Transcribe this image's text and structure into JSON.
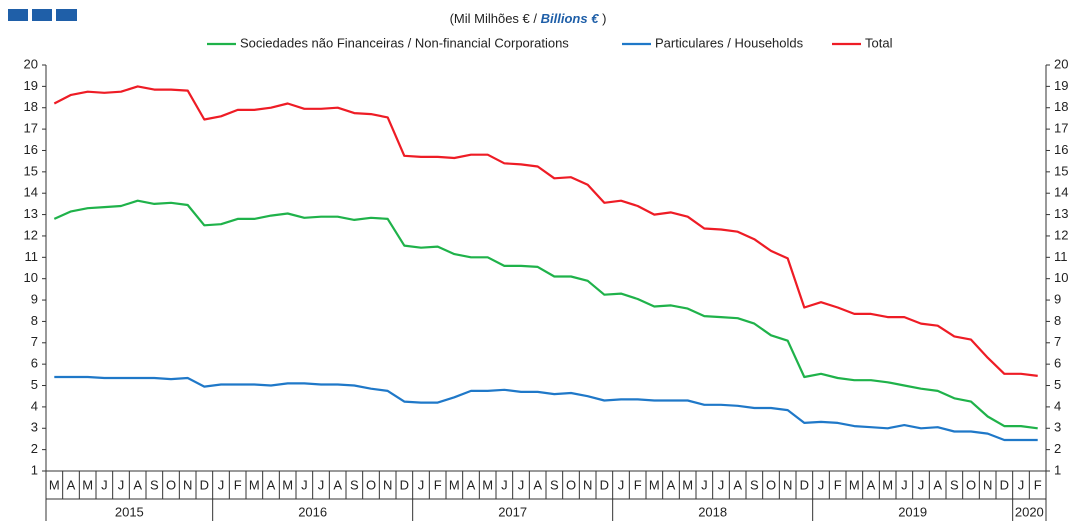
{
  "chart_data": {
    "type": "line",
    "title": "(Mil Milhões € /",
    "title_en": "Billions  €",
    "title_close": ")",
    "groups": [
      {
        "name": "2015",
        "categories": [
          "M",
          "A",
          "M",
          "J",
          "J",
          "A",
          "S",
          "O",
          "N",
          "D"
        ]
      },
      {
        "name": "2016",
        "categories": [
          "J",
          "F",
          "M",
          "A",
          "M",
          "J",
          "J",
          "A",
          "S",
          "O",
          "N",
          "D"
        ]
      },
      {
        "name": "2017",
        "categories": [
          "J",
          "F",
          "M",
          "A",
          "M",
          "J",
          "J",
          "A",
          "S",
          "O",
          "N",
          "D"
        ]
      },
      {
        "name": "2018",
        "categories": [
          "J",
          "F",
          "M",
          "A",
          "M",
          "J",
          "J",
          "A",
          "S",
          "O",
          "N",
          "D"
        ]
      },
      {
        "name": "2019",
        "categories": [
          "J",
          "F",
          "M",
          "A",
          "M",
          "J",
          "J",
          "A",
          "S",
          "O",
          "N",
          "D"
        ]
      },
      {
        "name": "2020",
        "categories": [
          "J",
          "F"
        ]
      }
    ],
    "series": [
      {
        "name": "Sociedades não Financeiras / Non-financial Corporations",
        "color": "#1fb24a",
        "values": [
          12.8,
          13.15,
          13.3,
          13.35,
          13.4,
          13.65,
          13.5,
          13.55,
          13.45,
          12.5,
          12.55,
          12.8,
          12.8,
          12.95,
          13.05,
          12.85,
          12.9,
          12.9,
          12.75,
          12.85,
          12.8,
          11.55,
          11.45,
          11.5,
          11.15,
          11.0,
          11.0,
          10.6,
          10.6,
          10.55,
          10.1,
          10.1,
          9.9,
          9.25,
          9.3,
          9.05,
          8.7,
          8.75,
          8.6,
          8.25,
          8.2,
          8.15,
          7.9,
          7.35,
          7.1,
          5.4,
          5.55,
          5.35,
          5.25,
          5.25,
          5.15,
          5.0,
          4.85,
          4.75,
          4.4,
          4.25,
          3.55,
          3.1,
          3.1,
          3.0
        ]
      },
      {
        "name": "Particulares / Households",
        "color": "#1f78c8",
        "values": [
          5.4,
          5.4,
          5.4,
          5.35,
          5.35,
          5.35,
          5.35,
          5.3,
          5.35,
          4.95,
          5.05,
          5.05,
          5.05,
          5.0,
          5.1,
          5.1,
          5.05,
          5.05,
          5.0,
          4.85,
          4.75,
          4.25,
          4.2,
          4.2,
          4.45,
          4.75,
          4.75,
          4.8,
          4.7,
          4.7,
          4.6,
          4.65,
          4.5,
          4.3,
          4.35,
          4.35,
          4.3,
          4.3,
          4.3,
          4.1,
          4.1,
          4.05,
          3.95,
          3.95,
          3.85,
          3.25,
          3.3,
          3.25,
          3.1,
          3.05,
          3.0,
          3.15,
          3.0,
          3.05,
          2.85,
          2.85,
          2.75,
          2.45,
          2.45,
          2.45
        ]
      },
      {
        "name": "Total",
        "color": "#ee1c25",
        "values": [
          18.2,
          18.6,
          18.75,
          18.7,
          18.75,
          19.0,
          18.85,
          18.85,
          18.8,
          17.45,
          17.6,
          17.9,
          17.9,
          18.0,
          18.2,
          17.95,
          17.95,
          18.0,
          17.75,
          17.7,
          17.55,
          15.75,
          15.7,
          15.7,
          15.65,
          15.8,
          15.8,
          15.4,
          15.35,
          15.25,
          14.7,
          14.75,
          14.4,
          13.55,
          13.65,
          13.4,
          13.0,
          13.1,
          12.9,
          12.35,
          12.3,
          12.2,
          11.85,
          11.3,
          10.95,
          8.65,
          8.9,
          8.65,
          8.35,
          8.35,
          8.2,
          8.2,
          7.9,
          7.8,
          7.3,
          7.15,
          6.3,
          5.55,
          5.55,
          5.45
        ]
      }
    ],
    "ylim": [
      1,
      20
    ],
    "yticks": [
      1,
      2,
      3,
      4,
      5,
      6,
      7,
      8,
      9,
      10,
      11,
      12,
      13,
      14,
      15,
      16,
      17,
      18,
      19,
      20
    ],
    "y2lim": [
      1,
      20
    ],
    "y2ticks": [
      1,
      2,
      3,
      4,
      5,
      6,
      7,
      8,
      9,
      10,
      11,
      12,
      13,
      14,
      15,
      16,
      17,
      18,
      19,
      20
    ],
    "grid": false
  }
}
